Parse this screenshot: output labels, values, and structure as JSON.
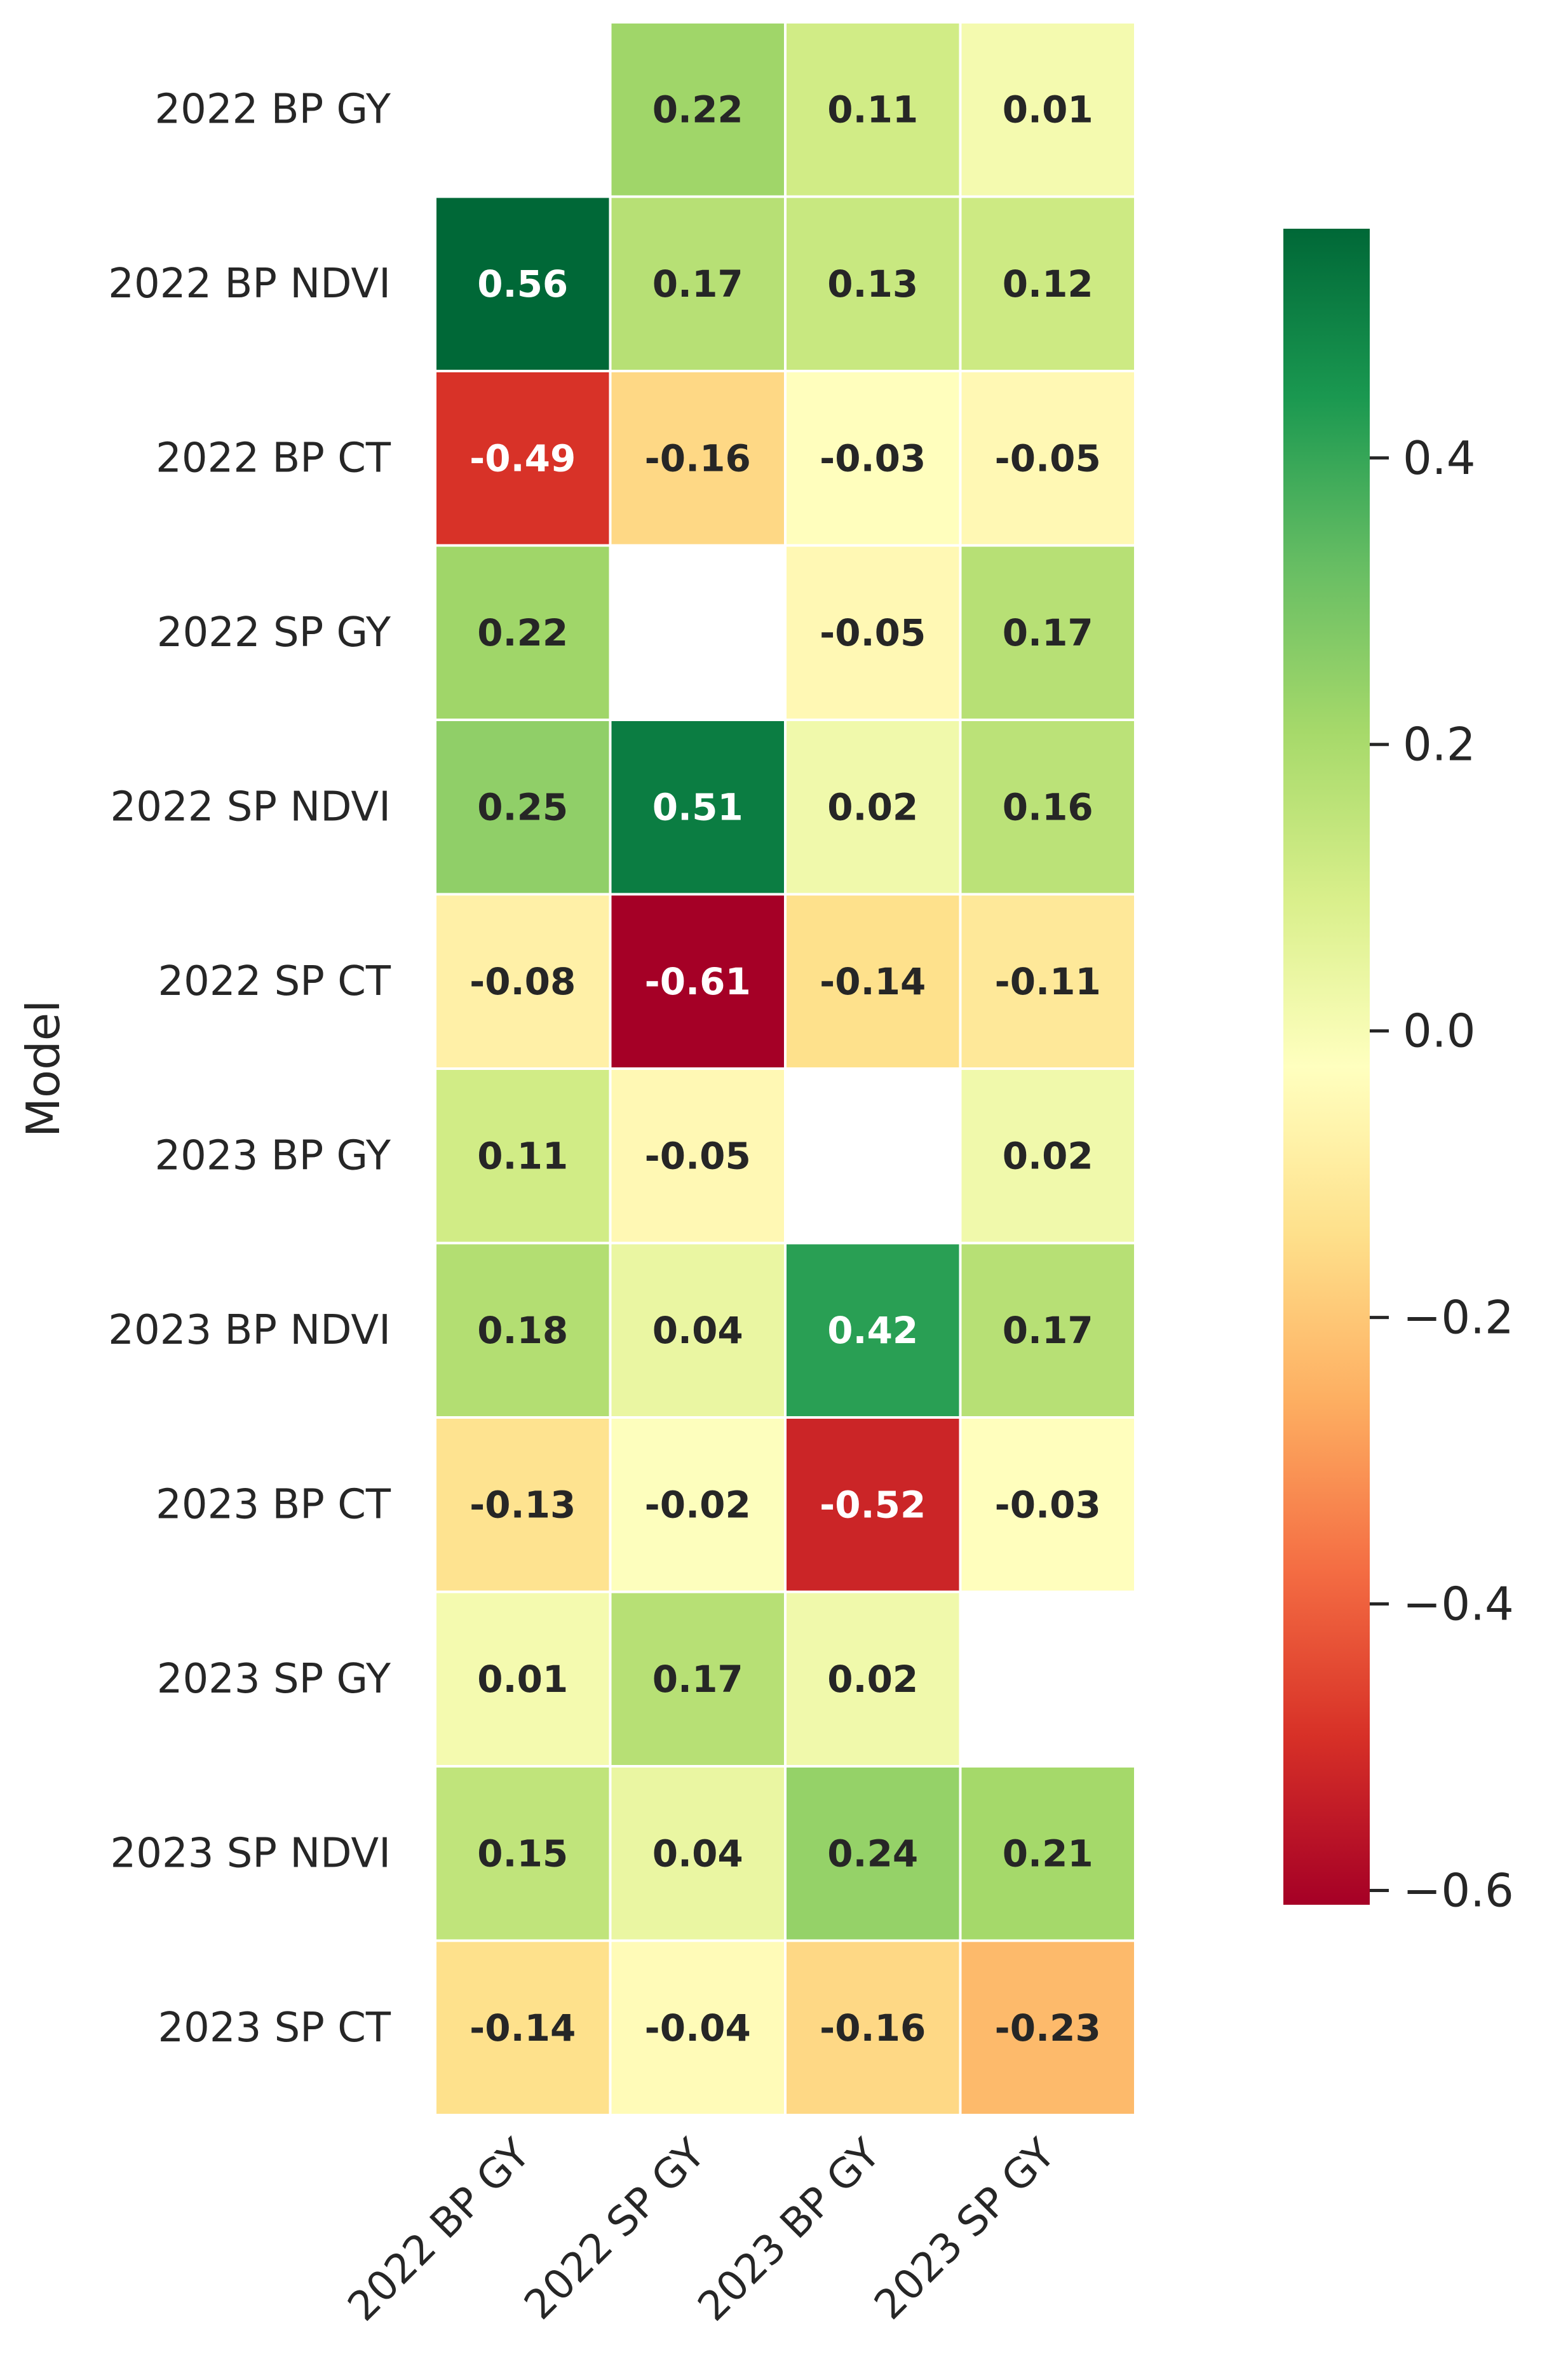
{
  "chart_data": {
    "type": "heatmap",
    "ylabel": "Model",
    "xlabel": "",
    "rows": [
      "2022 BP GY",
      "2022 BP NDVI",
      "2022 BP CT",
      "2022 SP GY",
      "2022 SP NDVI",
      "2022 SP CT",
      "2023 BP GY",
      "2023 BP NDVI",
      "2023 BP CT",
      "2023 SP GY",
      "2023 SP NDVI",
      "2023 SP CT"
    ],
    "columns": [
      "2022 BP GY",
      "2022 SP GY",
      "2023 BP GY",
      "2023 SP GY"
    ],
    "values": [
      [
        null,
        0.22,
        0.11,
        0.01
      ],
      [
        0.56,
        0.17,
        0.13,
        0.12
      ],
      [
        -0.49,
        -0.16,
        -0.03,
        -0.05
      ],
      [
        0.22,
        null,
        -0.05,
        0.17
      ],
      [
        0.25,
        0.51,
        0.02,
        0.16
      ],
      [
        -0.08,
        -0.61,
        -0.14,
        -0.11
      ],
      [
        0.11,
        -0.05,
        null,
        0.02
      ],
      [
        0.18,
        0.04,
        0.42,
        0.17
      ],
      [
        -0.13,
        -0.02,
        -0.52,
        -0.03
      ],
      [
        0.01,
        0.17,
        0.02,
        null
      ],
      [
        0.15,
        0.04,
        0.24,
        0.21
      ],
      [
        -0.14,
        -0.04,
        -0.16,
        -0.23
      ]
    ],
    "value_labels": [
      [
        null,
        "0.22",
        "0.11",
        "0.01"
      ],
      [
        "0.56",
        "0.17",
        "0.13",
        "0.12"
      ],
      [
        "-0.49",
        "-0.16",
        "-0.03",
        "-0.05"
      ],
      [
        "0.22",
        null,
        "-0.05",
        "0.17"
      ],
      [
        "0.25",
        "0.51",
        "0.02",
        "0.16"
      ],
      [
        "-0.08",
        "-0.61",
        "-0.14",
        "-0.11"
      ],
      [
        "0.11",
        "-0.05",
        null,
        "0.02"
      ],
      [
        "0.18",
        "0.04",
        "0.42",
        "0.17"
      ],
      [
        "-0.13",
        "-0.02",
        "-0.52",
        "-0.03"
      ],
      [
        "0.01",
        "0.17",
        "0.02",
        null
      ],
      [
        "0.15",
        "0.04",
        "0.24",
        "0.21"
      ],
      [
        "-0.14",
        "-0.04",
        "-0.16",
        "-0.23"
      ]
    ],
    "colormap": "RdYlGn",
    "vmin": -0.61,
    "vmax": 0.56,
    "colorbar": {
      "ticks": [
        0.4,
        0.2,
        0.0,
        -0.2,
        -0.4,
        -0.6
      ],
      "tick_labels": [
        "0.4",
        "0.2",
        "0.0",
        "−0.2",
        "−0.4",
        "−0.6"
      ]
    }
  },
  "colors": {
    "gridline": "#ffffff",
    "text_dark": "#262626",
    "text_light": "#ffffff"
  }
}
